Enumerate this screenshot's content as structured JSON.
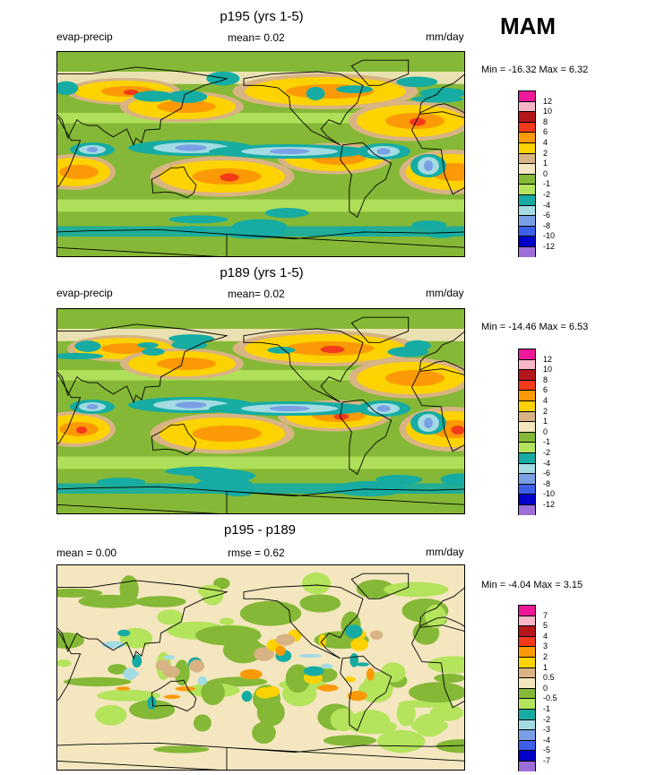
{
  "season": "MAM",
  "panels": [
    {
      "title": "p195 (yrs 1-5)",
      "left_label": "evap-precip",
      "mean_text": "mean=   0.02",
      "units": "mm/day",
      "minmax": "Min = -16.32 Max =   6.32"
    },
    {
      "title": "p189 (yrs 1-5)",
      "left_label": "evap-precip",
      "mean_text": "mean=   0.02",
      "units": "mm/day",
      "minmax": "Min = -14.46 Max =   6.53"
    },
    {
      "title": "p195 - p189",
      "left_label": "mean =   0.00",
      "mean_text": "rmse =   0.62",
      "units": "mm/day",
      "minmax": "Min =  -4.04 Max =   3.15"
    }
  ],
  "chart_data": [
    {
      "type": "heatmap",
      "title": "p195 (yrs 1-5)",
      "variable": "evap-precip",
      "units": "mm/day",
      "mean": 0.02,
      "min": -16.32,
      "max": 6.32,
      "colorbar": {
        "levels": [
          "12",
          "10",
          "8",
          "6",
          "4",
          "2",
          "1",
          "0",
          "-1",
          "-2",
          "-4",
          "-6",
          "-8",
          "-10",
          "-12"
        ],
        "colors": [
          "#f0189a",
          "#f9b6c9",
          "#b4161c",
          "#f33a1a",
          "#fb9a06",
          "#fcd300",
          "#d8b383",
          "#f4e6bf",
          "#84b836",
          "#b4e35c",
          "#16aca3",
          "#a3dbe3",
          "#79a0e4",
          "#3e5fe8",
          "#0000c8",
          "#9d6ed9"
        ]
      }
    },
    {
      "type": "heatmap",
      "title": "p189 (yrs 1-5)",
      "variable": "evap-precip",
      "units": "mm/day",
      "mean": 0.02,
      "min": -14.46,
      "max": 6.53,
      "colorbar": {
        "levels": [
          "12",
          "10",
          "8",
          "6",
          "4",
          "2",
          "1",
          "0",
          "-1",
          "-2",
          "-4",
          "-6",
          "-8",
          "-10",
          "-12"
        ],
        "colors": [
          "#f0189a",
          "#f9b6c9",
          "#b4161c",
          "#f33a1a",
          "#fb9a06",
          "#fcd300",
          "#d8b383",
          "#f4e6bf",
          "#84b836",
          "#b4e35c",
          "#16aca3",
          "#a3dbe3",
          "#79a0e4",
          "#3e5fe8",
          "#0000c8",
          "#9d6ed9"
        ]
      }
    },
    {
      "type": "heatmap",
      "title": "p195 - p189",
      "units": "mm/day",
      "mean": 0.0,
      "rmse": 0.62,
      "min": -4.04,
      "max": 3.15,
      "colorbar": {
        "levels": [
          "7",
          "5",
          "4",
          "3",
          "2",
          "1",
          "0.5",
          "0",
          "-0.5",
          "-1",
          "-2",
          "-3",
          "-4",
          "-5",
          "-7"
        ],
        "colors": [
          "#f0189a",
          "#f9b6c9",
          "#b4161c",
          "#f33a1a",
          "#fb9a06",
          "#fcd300",
          "#d8b383",
          "#f4e6bf",
          "#84b836",
          "#b4e35c",
          "#16aca3",
          "#a3dbe3",
          "#79a0e4",
          "#3e5fe8",
          "#0000c8",
          "#9d6ed9"
        ]
      }
    }
  ]
}
